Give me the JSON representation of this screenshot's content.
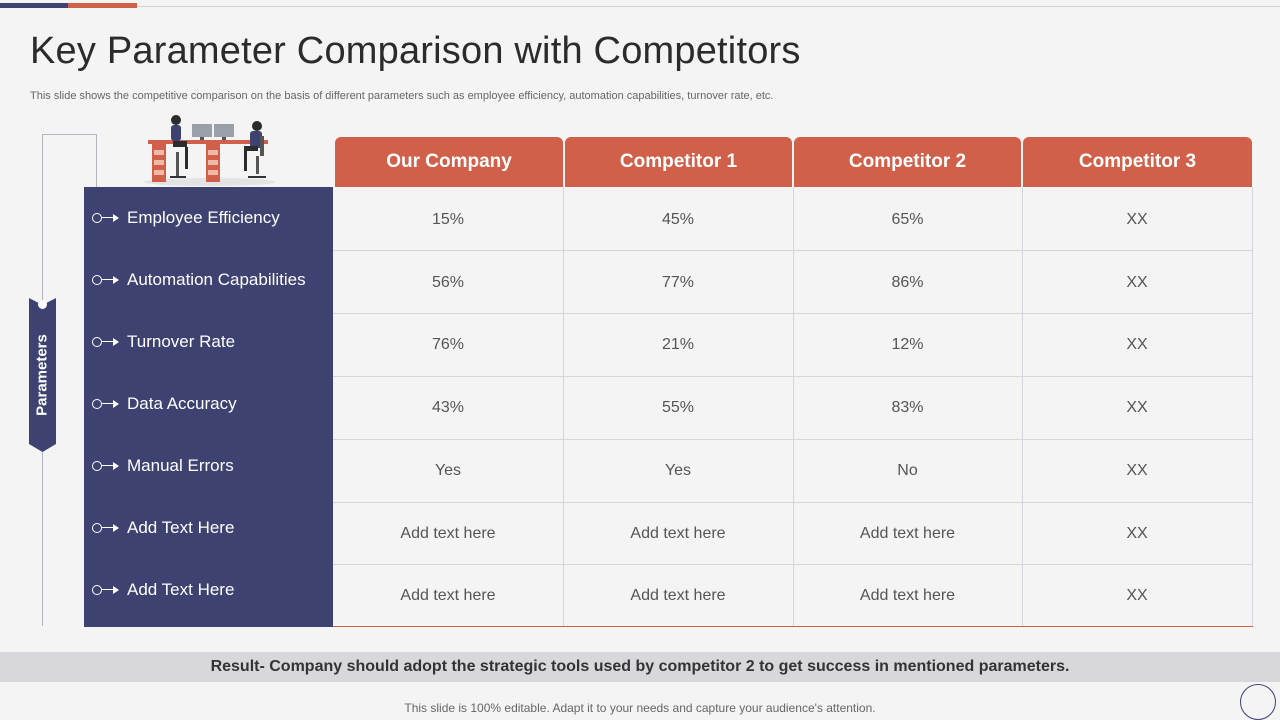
{
  "slide": {
    "title": "Key Parameter Comparison with Competitors",
    "subtitle": "This slide shows the competitive comparison on the  basis of different parameters such as employee efficiency, automation capabilities, turnover rate, etc.",
    "side_label": "Parameters",
    "result": "Result- Company should adopt the strategic tools  used by competitor 2 to get success  in mentioned parameters.",
    "footer": "This slide is 100% editable. Adapt it to your needs and capture your audience's attention."
  },
  "colors": {
    "navy": "#3d4270",
    "accent": "#d0604a",
    "result_bar": "#d8d8dc"
  },
  "table": {
    "columns": [
      "Our Company",
      "Competitor 1",
      "Competitor 2",
      "Competitor 3"
    ],
    "rows": [
      {
        "parameter": "Employee Efficiency",
        "values": [
          "15%",
          "45%",
          "65%",
          "XX"
        ]
      },
      {
        "parameter": "Automation Capabilities",
        "values": [
          "56%",
          "77%",
          "86%",
          "XX"
        ]
      },
      {
        "parameter": "Turnover Rate",
        "values": [
          "76%",
          "21%",
          "12%",
          "XX"
        ]
      },
      {
        "parameter": "Data Accuracy",
        "values": [
          "43%",
          "55%",
          "83%",
          "XX"
        ]
      },
      {
        "parameter": "Manual Errors",
        "values": [
          "Yes",
          "Yes",
          "No",
          "XX"
        ]
      },
      {
        "parameter": "Add Text Here",
        "values": [
          "Add text here",
          "Add text here",
          "Add text here",
          "XX"
        ]
      },
      {
        "parameter": "Add Text Here",
        "values": [
          "Add text here",
          "Add text here",
          "Add text here",
          "XX"
        ]
      }
    ]
  }
}
